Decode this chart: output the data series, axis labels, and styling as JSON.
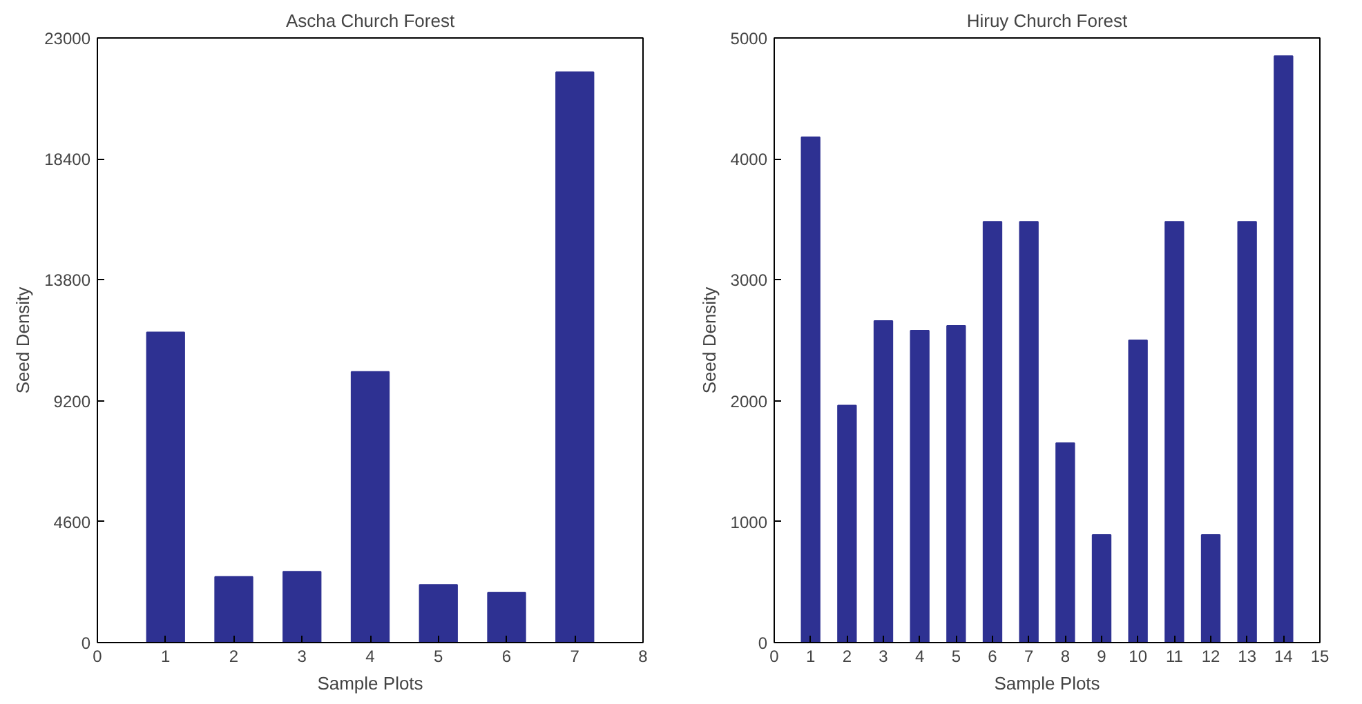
{
  "chart_data": [
    {
      "type": "bar",
      "title": "Ascha Church Forest",
      "xlabel": "Sample Plots",
      "ylabel": "Seed Density",
      "x": [
        1,
        2,
        3,
        4,
        5,
        6,
        7
      ],
      "values": [
        11800,
        2500,
        2700,
        10300,
        2200,
        1900,
        21700
      ],
      "color": "#2e3192",
      "xlim": [
        0,
        8
      ],
      "xticks": [
        0,
        1,
        2,
        3,
        4,
        5,
        6,
        7,
        8
      ],
      "ylim": [
        0,
        23000
      ],
      "yticks": [
        0,
        4600,
        9200,
        13800,
        18400,
        23000
      ],
      "grid": false
    },
    {
      "type": "bar",
      "title": "Hiruy Church Forest",
      "xlabel": "Sample Plots",
      "ylabel": "Seed Density",
      "x": [
        1,
        2,
        3,
        4,
        5,
        6,
        7,
        8,
        9,
        10,
        11,
        12,
        13,
        14
      ],
      "values": [
        4180,
        1960,
        2660,
        2580,
        2620,
        3480,
        3480,
        1650,
        890,
        2500,
        3480,
        890,
        3480,
        4850
      ],
      "color": "#2e3192",
      "xlim": [
        0,
        15
      ],
      "xticks": [
        0,
        1,
        2,
        3,
        4,
        5,
        6,
        7,
        8,
        9,
        10,
        11,
        12,
        13,
        14,
        15
      ],
      "ylim": [
        0,
        5000
      ],
      "yticks": [
        0,
        1000,
        2000,
        3000,
        4000,
        5000
      ],
      "grid": false
    }
  ]
}
